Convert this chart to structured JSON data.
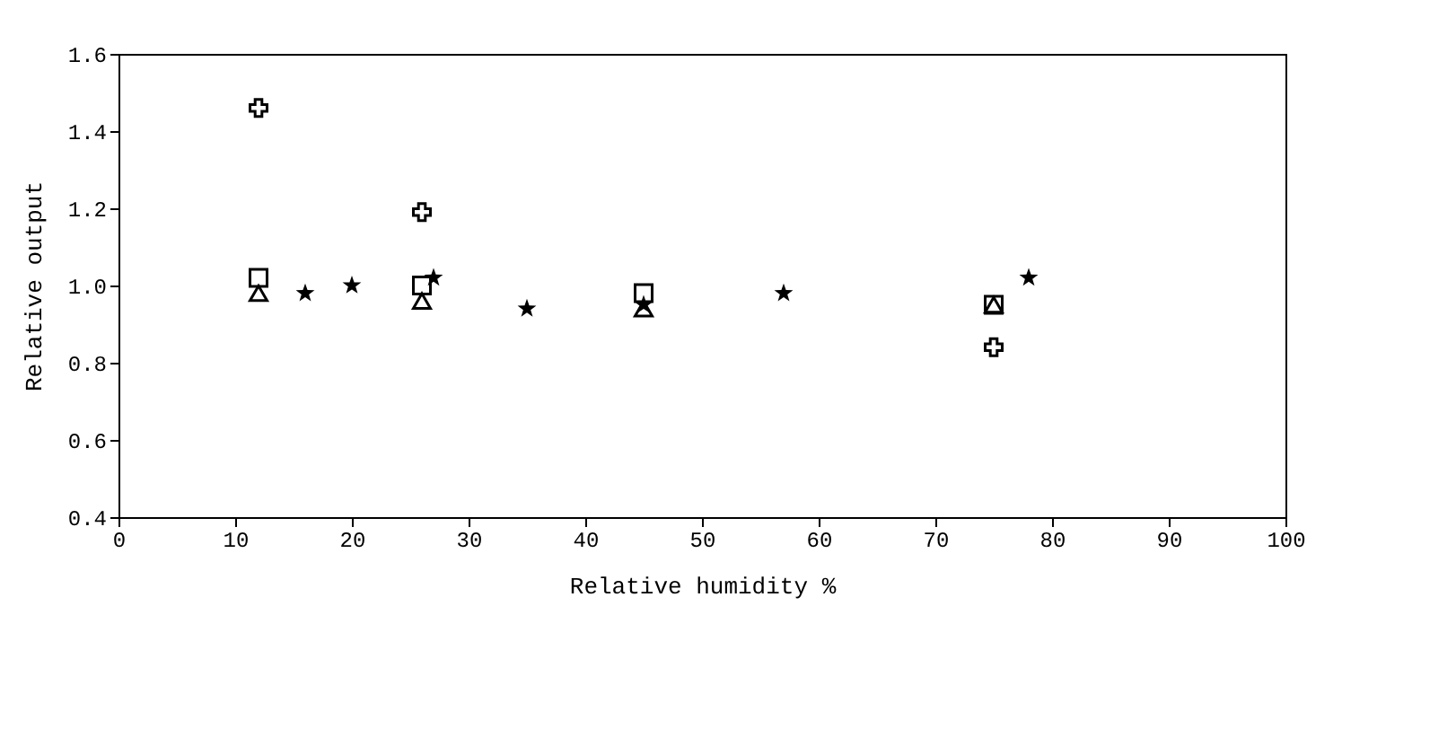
{
  "chart_data": {
    "type": "scatter",
    "xlabel": "Relative humidity   %",
    "ylabel": "Relative output",
    "xlim": [
      0,
      100
    ],
    "xticks": [
      0,
      10,
      20,
      30,
      40,
      50,
      60,
      70,
      80,
      90,
      100
    ],
    "ylim": [
      0.4,
      1.6
    ],
    "yticks": [
      0.4,
      0.6,
      0.8,
      {
        "value": 1,
        "label": "1.0"
      },
      1.2,
      1.4,
      1.6
    ],
    "grid": false,
    "series": [
      {
        "color": "#000000",
        "marker": "cross",
        "x": [
          12,
          26,
          75
        ],
        "values": [
          1.46,
          1.19,
          0.84
        ]
      },
      {
        "color": "#000000",
        "marker": "square",
        "x": [
          12,
          26,
          45,
          75
        ],
        "values": [
          1.02,
          1.0,
          0.98,
          0.95
        ]
      },
      {
        "color": "#000000",
        "marker": "triangle",
        "x": [
          12,
          26,
          45,
          75
        ],
        "values": [
          0.98,
          0.96,
          0.94,
          0.95
        ]
      },
      {
        "color": "#000000",
        "marker": "star",
        "x": [
          16,
          20,
          27,
          35,
          45,
          57,
          78
        ],
        "values": [
          0.98,
          1.0,
          1.02,
          0.94,
          0.95,
          0.98,
          1.02
        ]
      }
    ]
  }
}
